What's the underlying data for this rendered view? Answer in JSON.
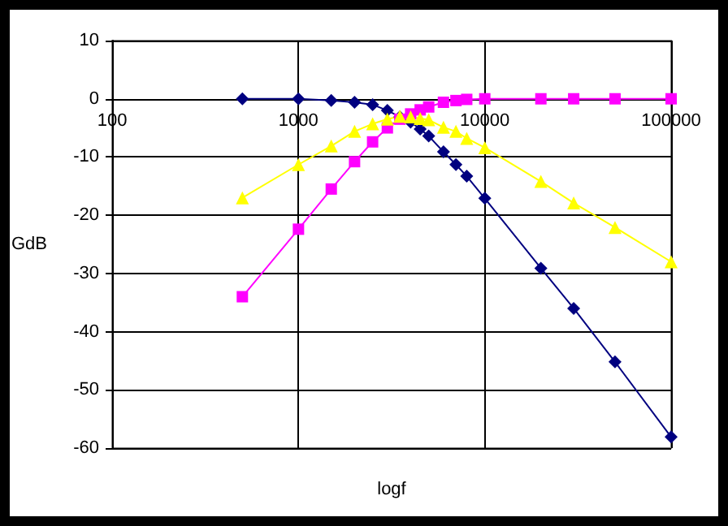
{
  "chart_data": {
    "type": "line",
    "xlabel": "logf",
    "ylabel": "GdB",
    "log": "x",
    "grid": true,
    "x": [
      500,
      1000,
      1500,
      2000,
      2500,
      3000,
      3500,
      4000,
      4500,
      5000,
      6000,
      7000,
      8000,
      10000,
      20000,
      30000,
      50000,
      100000
    ],
    "xlim": [
      100,
      100000
    ],
    "xticks": [
      100,
      1000,
      10000,
      100000
    ],
    "ylim": [
      -60,
      10
    ],
    "yticks": [
      -60,
      -50,
      -40,
      -30,
      -20,
      -10,
      0,
      10
    ],
    "series": [
      {
        "color": "#000080",
        "marker": "diamond",
        "values": [
          0,
          0,
          -0.3,
          -0.6,
          -1.0,
          -2.0,
          -3.1,
          -4.0,
          -5.2,
          -6.4,
          -9.1,
          -11.3,
          -13.3,
          -17.1,
          -29.1,
          -36.0,
          -45.2,
          -58.1
        ]
      },
      {
        "color": "#ff00ff",
        "marker": "square",
        "values": [
          -34,
          -22.4,
          -15.5,
          -10.8,
          -7.4,
          -5.0,
          -3.5,
          -2.6,
          -1.9,
          -1.4,
          -0.6,
          -0.3,
          -0.1,
          0,
          0,
          0,
          0,
          0
        ]
      },
      {
        "color": "#ffff00",
        "marker": "triangle",
        "values": [
          -17.0,
          -11.3,
          -8.1,
          -5.6,
          -4.3,
          -3.5,
          -3.0,
          -3.1,
          -3.4,
          -3.6,
          -4.9,
          -5.6,
          -6.8,
          -8.4,
          -14.2,
          -17.9,
          -22.1,
          -28.0
        ]
      }
    ]
  }
}
